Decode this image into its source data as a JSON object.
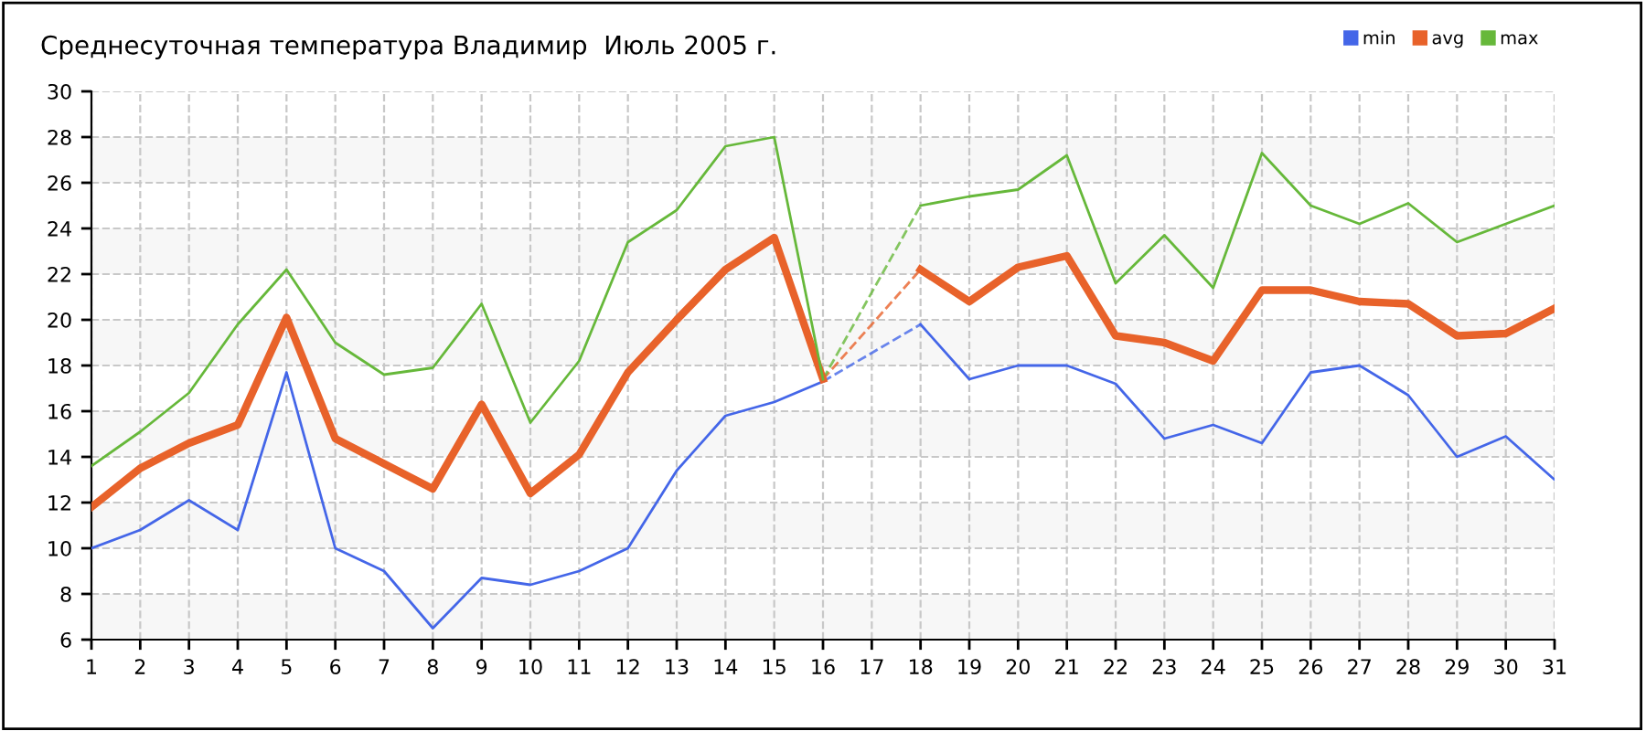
{
  "chart_data": {
    "type": "line",
    "title": "Среднесуточная температура Владимир  Июль 2005 г.",
    "categories": [
      "1",
      "2",
      "3",
      "4",
      "5",
      "6",
      "7",
      "8",
      "9",
      "10",
      "11",
      "12",
      "13",
      "14",
      "15",
      "16",
      "17",
      "18",
      "19",
      "20",
      "21",
      "22",
      "23",
      "24",
      "25",
      "26",
      "27",
      "28",
      "29",
      "30",
      "31"
    ],
    "series": [
      {
        "name": "min",
        "color": "#4466e8",
        "values": [
          10.0,
          10.8,
          12.1,
          10.8,
          17.7,
          10.0,
          9.0,
          6.5,
          8.7,
          8.4,
          9.0,
          10.0,
          13.4,
          15.8,
          16.4,
          17.3,
          null,
          19.8,
          17.4,
          18.0,
          18.0,
          17.2,
          14.8,
          15.4,
          14.6,
          17.7,
          18.0,
          16.7,
          14.0,
          14.9,
          13.0
        ]
      },
      {
        "name": "avg",
        "color": "#e8622a",
        "values": [
          11.8,
          13.5,
          14.6,
          15.4,
          20.1,
          14.8,
          13.7,
          12.6,
          16.3,
          12.4,
          14.1,
          17.7,
          20.0,
          22.2,
          23.6,
          17.4,
          null,
          22.2,
          20.8,
          22.3,
          22.8,
          19.3,
          19.0,
          18.2,
          21.3,
          21.3,
          20.8,
          20.7,
          19.3,
          19.4,
          20.5
        ]
      },
      {
        "name": "max",
        "color": "#66b83a",
        "values": [
          13.6,
          15.1,
          16.8,
          19.8,
          22.2,
          19.0,
          17.6,
          17.9,
          20.7,
          15.5,
          18.2,
          23.4,
          24.8,
          27.6,
          28.0,
          17.4,
          null,
          25.0,
          25.4,
          25.7,
          27.2,
          21.6,
          23.7,
          21.4,
          27.3,
          25.0,
          24.2,
          25.1,
          23.4,
          24.2,
          25.0
        ]
      }
    ],
    "ylim": [
      6,
      30
    ],
    "yticks": [
      6,
      8,
      10,
      12,
      14,
      16,
      18,
      20,
      22,
      24,
      26,
      28,
      30
    ],
    "grid": true,
    "legend": "top right",
    "marker": "none",
    "line_style": "solid"
  }
}
